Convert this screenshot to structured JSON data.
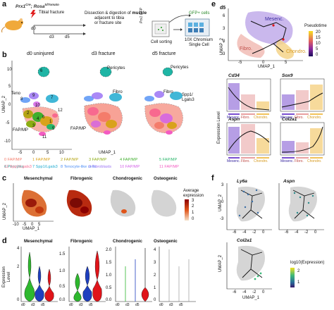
{
  "panel_labels": {
    "a": "a",
    "b": "b",
    "c": "c",
    "d": "d",
    "e": "e",
    "f": "f"
  },
  "panel_a": {
    "genotype_line1": "Prx1",
    "genotype_sup1": "Cre",
    "genotype_line2": "Rosa",
    "genotype_sup2": "tdTomato",
    "event": "Tibial fracture",
    "timepoints": [
      "d0",
      "d3",
      "d5"
    ],
    "dissection_text_1": "Dissection & digestion of ",
    "dissection_text_bold": "muscle",
    "dissection_text_2": "adjacent to tibia",
    "dissection_text_3": "or fracture site",
    "gfp_label": "GFP+ cells",
    "sorter_label": "Prx1 GFP",
    "cell_sorting": "Cell sorting",
    "chromium_line1": "10X Chromium",
    "chromium_line2": "Single Cell"
  },
  "panel_b": {
    "titles": [
      "d0 uninjured",
      "d3 fracture",
      "d5 fracture"
    ],
    "xlabel": "UMAP_1",
    "ylabel": "UMAP_2",
    "xticks": [
      "-5",
      "0",
      "5",
      "10"
    ],
    "yticks": [
      "10",
      "5",
      "0",
      "-5",
      "-10"
    ],
    "annotations": {
      "pericytes": "Pericytes",
      "teno": "Teno",
      "fibro": "Fibro",
      "spp1": "Spp1/",
      "lgals3": "Lgals3",
      "fapmp": "FAP/MP"
    },
    "cluster_numbers_d0": [
      "6",
      "8",
      "7",
      "9",
      "12",
      "10",
      "2",
      "3",
      "0",
      "4",
      "1",
      "5",
      "11"
    ],
    "legend": [
      {
        "num": "0",
        "label": "FAP/MP",
        "color": "#f47c6b"
      },
      {
        "num": "1",
        "label": "FAP/MP",
        "color": "#d9a21b"
      },
      {
        "num": "2",
        "label": "FAP/MP",
        "color": "#b5a514"
      },
      {
        "num": "3",
        "label": "FAP/MP",
        "color": "#8bad13"
      },
      {
        "num": "4",
        "label": "FAP/MP",
        "color": "#3fae2c"
      },
      {
        "num": "5",
        "label": "FAP/MP",
        "color": "#29b56a"
      },
      {
        "num": "6",
        "label": "Pericytes",
        "color": "#1fb5a5"
      },
      {
        "num": "7",
        "label": "Spp1/Lgals3",
        "color": "#1eaad0"
      },
      {
        "num": "8",
        "label": "Tenocyte-like cells",
        "color": "#4d8ff5"
      },
      {
        "num": "9",
        "label": "Fibroblasts",
        "color": "#9b74f4"
      },
      {
        "num": "10",
        "label": "FAP/MP",
        "color": "#d262e6"
      },
      {
        "num": "11",
        "label": "FAP/MP",
        "color": "#f35bc2"
      },
      {
        "num": "12",
        "label": "Spp1/Lgals3",
        "color": "#f8698f"
      }
    ]
  },
  "panel_c": {
    "titles": [
      "Mesenchymal",
      "Fibrogenic",
      "Chondrogenic",
      "Osteogenic"
    ],
    "xlabel": "UMAP_1",
    "ylabel": "UMAP_2",
    "xticks": [
      "-10",
      "-5",
      "0",
      "5"
    ],
    "legend_title_1": "Average",
    "legend_title_2": "expression",
    "legend_ticks": [
      "3",
      "2",
      "1",
      "0"
    ]
  },
  "panel_d": {
    "titles": [
      "Mesenchymal",
      "Fibrogenic",
      "Chondrogenic",
      "Osteogenic"
    ],
    "ylabel_1": "Expression",
    "ylabel_2": "Level",
    "groups": [
      "d0",
      "d3",
      "d5"
    ],
    "colors": {
      "d0": "#2eb82e",
      "d3": "#1f3fbf",
      "d5": "#e0141a"
    },
    "yticks": [
      [
        "4",
        "2",
        "0"
      ],
      [
        "1.5",
        "1.0",
        "0.5",
        "0.0"
      ],
      [
        "2.0",
        "1.5",
        "1.0",
        "0.5",
        "0.0"
      ],
      [
        "4",
        "3",
        "2",
        "1",
        "0"
      ]
    ]
  },
  "panel_e": {
    "title": "d5",
    "clusters": {
      "mesenc": "Mesenc.",
      "fibro": "Fibro.",
      "chondro": "Chondro."
    },
    "xlabel": "UMAP_1",
    "ylabel": "UMAP_2",
    "xticks": [
      "-5",
      "0",
      "5"
    ],
    "yticks": [
      "6",
      "3",
      "0",
      "-3"
    ],
    "legend_title": "Pseudotime",
    "legend_ticks": [
      "20",
      "15",
      "10",
      "5",
      "0"
    ],
    "genes": [
      "Cd34",
      "Sox9",
      "Aspn",
      "Col2a1"
    ],
    "shared_ylabel": "Expression Level",
    "trajectory_labels": [
      "Mesenc.",
      "Fibro.",
      "Chondro."
    ],
    "colors": {
      "mesenc": "#7b4fd0",
      "fibro": "#e8a0a0",
      "chondro": "#f2c25a"
    }
  },
  "panel_f": {
    "genes": [
      "Ly6a",
      "Aspn",
      "Col2a1"
    ],
    "xlabel": "UMAP_1",
    "ylabel": "UMAP_2",
    "xticks": [
      "-6",
      "-4",
      "-2",
      "0"
    ],
    "yticks": [
      "3",
      "0",
      "-3"
    ],
    "legend_title": "log10(Expression)",
    "legend_ticks": [
      "2",
      "1"
    ]
  }
}
